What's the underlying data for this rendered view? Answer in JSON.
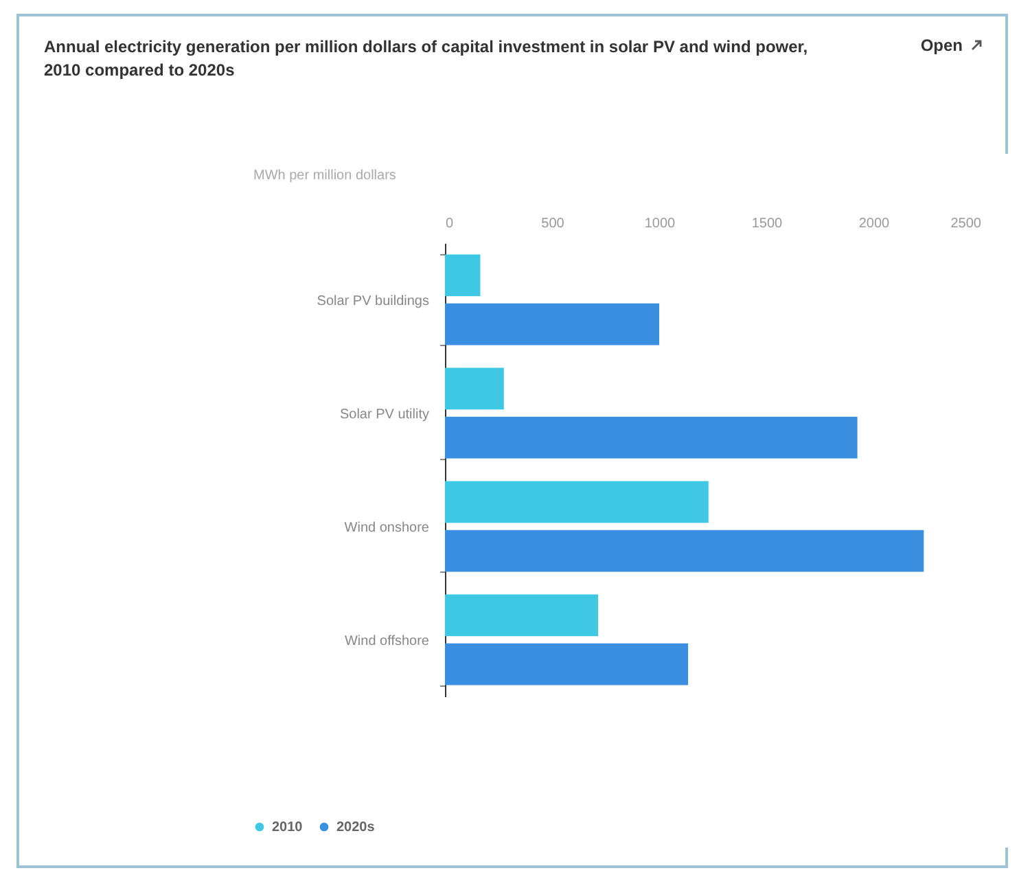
{
  "chart_data": {
    "type": "bar",
    "orientation": "horizontal",
    "title": "Annual electricity generation per million dollars of capital investment in solar PV and wind power, 2010 compared to 2020s",
    "xlabel": "MWh per million dollars",
    "categories": [
      "Solar PV buildings",
      "Solar PV utility",
      "Wind onshore",
      "Wind offshore"
    ],
    "series": [
      {
        "name": "2010",
        "color": "#3ec8e4",
        "values": [
          165,
          275,
          1230,
          715
        ]
      },
      {
        "name": "2020s",
        "color": "#3a8fe0",
        "values": [
          1000,
          1925,
          2235,
          1135
        ]
      }
    ],
    "xlim": [
      0,
      2500
    ],
    "xticks": [
      0,
      500,
      1000,
      1500,
      2000,
      2500
    ],
    "grid": false,
    "legend": "bottom",
    "annotations": [
      "Open"
    ]
  }
}
